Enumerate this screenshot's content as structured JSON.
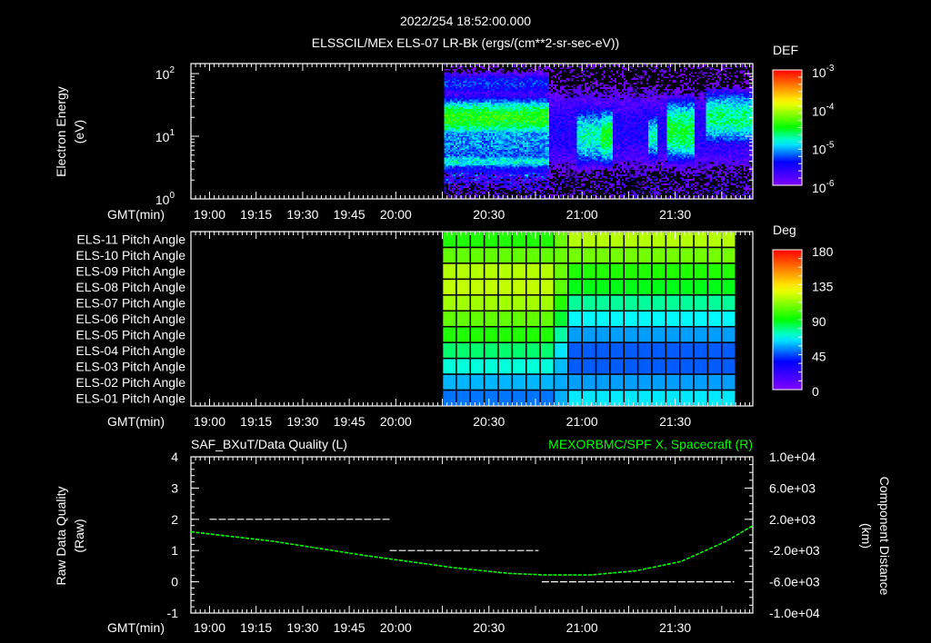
{
  "header": {
    "datetime": "2022/254 18:52:00.000",
    "title": "ELSSCIL/MEx ELS-07 LR-Bk  (ergs/(cm**2-sr-sec-eV))"
  },
  "axis": {
    "gmt_label": "GMT(min)",
    "time_ticks": [
      "19:00",
      "19:15",
      "19:30",
      "19:45",
      "20:00",
      "20:30",
      "21:00",
      "21:30"
    ],
    "time_range_min": [
      1134,
      1315
    ]
  },
  "colors": {
    "fg": "#ffffff",
    "green": "#00ff00",
    "bg": "#000000"
  },
  "chart_data": [
    {
      "type": "heatmap",
      "name": "electron-energy-spectrogram",
      "ylabel": "Electron Energy",
      "yunits": "(eV)",
      "yscale": "log",
      "ylim_log10": [
        0,
        2.16
      ],
      "yticks": [
        {
          "base": "10",
          "exp": "2",
          "log": 2
        },
        {
          "base": "10",
          "exp": "1",
          "log": 1
        },
        {
          "base": "10",
          "exp": "0",
          "log": 0
        }
      ],
      "colorbar": {
        "title": "DEF",
        "range_log10": [
          -6,
          -3
        ],
        "ticks": [
          {
            "base": "10",
            "exp": "-3",
            "log": -3
          },
          {
            "base": "10",
            "exp": "-4",
            "log": -4
          },
          {
            "base": "10",
            "exp": "-5",
            "log": -5
          },
          {
            "base": "10",
            "exp": "-6",
            "log": -6
          }
        ]
      },
      "spectrogram": {
        "t_start_min": 1215.5,
        "t_end_min": 1315,
        "noise": 0.45,
        "components": [
          {
            "t0": 1215.5,
            "t1": 1249,
            "e_center": 1.0,
            "e_width": 0.8,
            "peak": -5.1
          },
          {
            "t0": 1215.5,
            "t1": 1249,
            "e_center": 1.3,
            "e_width": 0.28,
            "peak": -4.45
          },
          {
            "t0": 1215.5,
            "t1": 1249,
            "e_center": 0.6,
            "e_width": 0.12,
            "peak": -4.85
          },
          {
            "t0": 1215.5,
            "t1": 1249,
            "e_center": 1.85,
            "e_width": 0.22,
            "peak": -5.35
          },
          {
            "t0": 1249,
            "t1": 1315,
            "e_center": 1.1,
            "e_width": 0.9,
            "peak": -5.55
          },
          {
            "t0": 1258,
            "t1": 1266,
            "e_center": 1.0,
            "e_width": 0.45,
            "peak": -4.8
          },
          {
            "t0": 1266,
            "t1": 1270,
            "e_center": 1.0,
            "e_width": 0.4,
            "peak": -4.5
          },
          {
            "t0": 1281,
            "t1": 1284,
            "e_center": 1.0,
            "e_width": 0.35,
            "peak": -4.8
          },
          {
            "t0": 1287,
            "t1": 1296,
            "e_center": 1.1,
            "e_width": 0.45,
            "peak": -4.55
          },
          {
            "t0": 1300,
            "t1": 1315,
            "e_center": 1.3,
            "e_width": 0.4,
            "peak": -4.7
          }
        ]
      }
    },
    {
      "type": "heatmap",
      "name": "pitch-angle-grid",
      "colorbar": {
        "title": "Deg",
        "range": [
          0,
          180
        ],
        "ticks": [
          "180",
          "135",
          "90",
          "45",
          "0"
        ],
        "tick_values": [
          180,
          135,
          90,
          45,
          0
        ]
      },
      "t_start_min": 1215,
      "bin_minutes": 4.5,
      "columns": 21,
      "transition_column": 8,
      "rows": [
        {
          "label": "ELS-11 Pitch Angle",
          "before": 95,
          "after": 118
        },
        {
          "label": "ELS-10 Pitch Angle",
          "before": 105,
          "after": 108
        },
        {
          "label": "ELS-09 Pitch Angle",
          "before": 118,
          "after": 95
        },
        {
          "label": "ELS-08 Pitch Angle",
          "before": 120,
          "after": 88
        },
        {
          "label": "ELS-07 Pitch Angle",
          "before": 115,
          "after": 76
        },
        {
          "label": "ELS-06 Pitch Angle",
          "before": 105,
          "after": 66
        },
        {
          "label": "ELS-05 Pitch Angle",
          "before": 95,
          "after": 55
        },
        {
          "label": "ELS-04 Pitch Angle",
          "before": 80,
          "after": 47
        },
        {
          "label": "ELS-03 Pitch Angle",
          "before": 70,
          "after": 47
        },
        {
          "label": "ELS-02 Pitch Angle",
          "before": 58,
          "after": 55
        },
        {
          "label": "ELS-01 Pitch Angle",
          "before": 50,
          "after": 64
        }
      ]
    },
    {
      "type": "line",
      "left_title": "SAF_BXuT/Data Quality (L)",
      "right_title": "MEXORBMC/SPF X, Spacecraft (R)",
      "ylabel_left": "Raw Data Quality",
      "yunits_left": "(Raw)",
      "ylabel_right": "Component Distance",
      "yunits_right": "(km)",
      "ylim_left": [
        -1,
        4
      ],
      "ylim_right": [
        -10000,
        10000
      ],
      "yticks_left": [
        "4",
        "3",
        "2",
        "1",
        "0",
        "-1"
      ],
      "yticks_left_values": [
        4,
        3,
        2,
        1,
        0,
        -1
      ],
      "yticks_right": [
        "1.0e+04",
        "6.0e+03",
        "2.0e+03",
        "-2.0e+03",
        "-6.0e+03",
        "-1.0e+04"
      ],
      "yticks_right_values": [
        10000,
        6000,
        2000,
        -2000,
        -6000,
        -10000
      ],
      "data_quality": [
        {
          "t0": 1140,
          "t1": 1198,
          "value": 2
        },
        {
          "t0": 1198,
          "t1": 1246,
          "value": 1
        },
        {
          "t0": 1247,
          "t1": 1309,
          "value": 0
        }
      ],
      "spf_x_km": {
        "t": [
          1134,
          1160.3,
          1189.5,
          1218.8,
          1236.3,
          1248,
          1262.7,
          1277.3,
          1291.9,
          1306.5,
          1314.7
        ],
        "values": [
          400,
          -800,
          -2600,
          -4200,
          -4920,
          -5120,
          -5120,
          -4600,
          -3400,
          -800,
          1120
        ]
      }
    }
  ]
}
